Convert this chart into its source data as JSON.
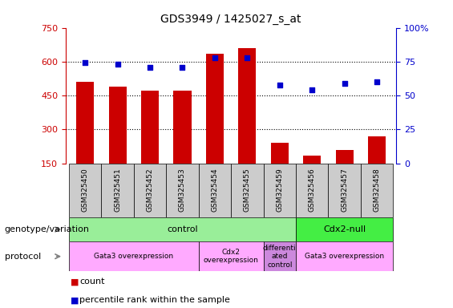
{
  "title": "GDS3949 / 1425027_s_at",
  "samples": [
    "GSM325450",
    "GSM325451",
    "GSM325452",
    "GSM325453",
    "GSM325454",
    "GSM325455",
    "GSM325459",
    "GSM325456",
    "GSM325457",
    "GSM325458"
  ],
  "counts": [
    510,
    490,
    470,
    470,
    635,
    660,
    240,
    185,
    210,
    270
  ],
  "percentiles": [
    74,
    73,
    71,
    71,
    78,
    78,
    58,
    54,
    59,
    60
  ],
  "ylim_left": [
    150,
    750
  ],
  "ylim_right": [
    0,
    100
  ],
  "yticks_left": [
    150,
    300,
    450,
    600,
    750
  ],
  "yticks_right": [
    0,
    25,
    50,
    75,
    100
  ],
  "bar_color": "#cc0000",
  "dot_color": "#0000cc",
  "bar_bottom": 150,
  "grid_lines": [
    300,
    450,
    600
  ],
  "genotype_groups": [
    {
      "label": "control",
      "start": 0,
      "end": 7,
      "color": "#99ee99"
    },
    {
      "label": "Cdx2-null",
      "start": 7,
      "end": 10,
      "color": "#44ee44"
    }
  ],
  "protocol_groups": [
    {
      "label": "Gata3 overexpression",
      "start": 0,
      "end": 4,
      "color": "#ffaaff"
    },
    {
      "label": "Cdx2\noverexpression",
      "start": 4,
      "end": 6,
      "color": "#ffaaff"
    },
    {
      "label": "differenti\nated\ncontrol",
      "start": 6,
      "end": 7,
      "color": "#cc88dd"
    },
    {
      "label": "Gata3 overexpression",
      "start": 7,
      "end": 10,
      "color": "#ffaaff"
    }
  ],
  "left_label_genotype": "genotype/variation",
  "left_label_protocol": "protocol",
  "legend_count_label": "count",
  "legend_percentile_label": "percentile rank within the sample",
  "sample_box_color": "#cccccc",
  "fig_width": 5.65,
  "fig_height": 3.84
}
